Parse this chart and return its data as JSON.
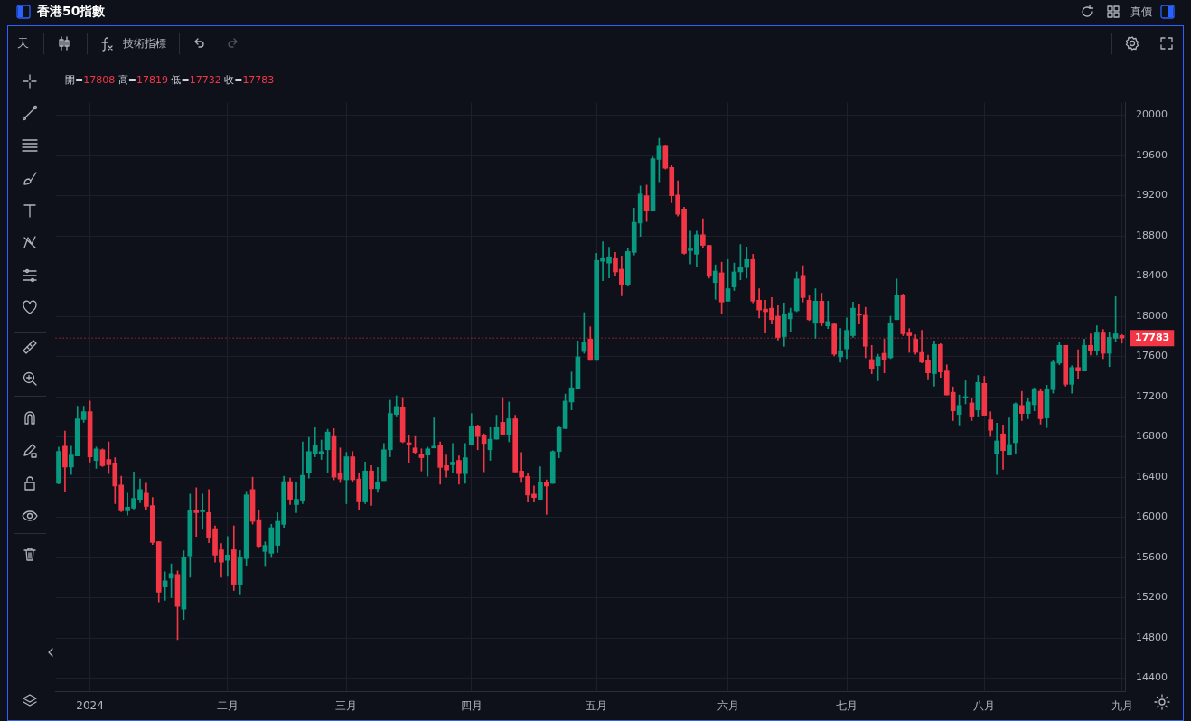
{
  "chart_data": {
    "type": "candlestick",
    "title": "香港50指數",
    "annotations": [
      "開=17808 高=17819 低=17732 收=17783",
      "天",
      "技術指標",
      "真價"
    ],
    "categories": [
      null,
      null,
      null,
      null,
      null,
      "2024",
      null,
      null,
      null,
      null,
      null,
      null,
      null,
      null,
      null,
      null,
      null,
      null,
      null,
      null,
      null,
      null,
      null,
      null,
      null,
      null,
      null,
      "二月",
      null,
      null,
      null,
      null,
      null,
      null,
      null,
      null,
      null,
      null,
      null,
      null,
      null,
      null,
      null,
      null,
      null,
      null,
      "三月",
      null,
      null,
      null,
      null,
      null,
      null,
      null,
      null,
      null,
      null,
      null,
      null,
      null,
      null,
      null,
      null,
      null,
      null,
      null,
      "四月",
      null,
      null,
      null,
      null,
      null,
      null,
      null,
      null,
      null,
      null,
      null,
      null,
      null,
      null,
      null,
      null,
      null,
      null,
      null,
      "五月",
      null,
      null,
      null,
      null,
      null,
      null,
      null,
      null,
      null,
      null,
      null,
      null,
      null,
      null,
      null,
      null,
      null,
      null,
      null,
      null,
      "六月",
      null,
      null,
      null,
      null,
      null,
      null,
      null,
      null,
      null,
      null,
      null,
      null,
      null,
      null,
      null,
      null,
      null,
      null,
      "七月",
      null,
      null,
      null,
      null,
      null,
      null,
      null,
      null,
      null,
      null,
      null,
      null,
      null,
      null,
      null,
      null,
      null,
      null,
      null,
      null,
      null,
      "八月",
      null,
      null,
      null,
      null,
      null,
      null,
      null,
      null,
      null,
      null,
      null,
      null,
      null,
      null,
      null,
      null,
      null,
      null,
      null,
      null,
      null,
      "九月"
    ],
    "ohlc": [
      [
        16338,
        16699,
        16332,
        16655
      ],
      [
        16707,
        16857,
        16258,
        16499
      ],
      [
        16499,
        16707,
        16426,
        16619
      ],
      [
        16610,
        17104,
        16610,
        16980
      ],
      [
        16971,
        17104,
        16945,
        17051
      ],
      [
        17051,
        17156,
        16549,
        16602
      ],
      [
        16566,
        16699,
        16487,
        16681
      ],
      [
        16672,
        16681,
        16505,
        16514
      ],
      [
        16575,
        16751,
        16434,
        16522
      ],
      [
        16531,
        16593,
        16135,
        16311
      ],
      [
        16320,
        16408,
        16056,
        16065
      ],
      [
        16065,
        16241,
        16021,
        16100
      ],
      [
        16091,
        16452,
        16082,
        16188
      ],
      [
        16179,
        16382,
        16144,
        16276
      ],
      [
        16241,
        16338,
        16073,
        16109
      ],
      [
        16117,
        16197,
        15730,
        15750
      ],
      [
        15756,
        15756,
        15158,
        15254
      ],
      [
        15307,
        15457,
        15175,
        15369
      ],
      [
        15395,
        15536,
        15202,
        15439
      ],
      [
        15431,
        15466,
        14782,
        15114
      ],
      [
        15087,
        15668,
        14982,
        15607
      ],
      [
        15616,
        16232,
        15404,
        16073
      ],
      [
        16073,
        16293,
        15809,
        16047
      ],
      [
        16056,
        16232,
        15880,
        16073
      ],
      [
        16047,
        16276,
        15748,
        15792
      ],
      [
        15888,
        15915,
        15554,
        15624
      ],
      [
        15677,
        15739,
        15404,
        15554
      ],
      [
        15572,
        15809,
        15413,
        15624
      ],
      [
        15677,
        15915,
        15272,
        15334
      ],
      [
        15334,
        15668,
        15237,
        15598
      ],
      [
        15589,
        16258,
        15519,
        16223
      ],
      [
        16276,
        16399,
        15932,
        15959
      ],
      [
        15977,
        16073,
        15704,
        15712
      ],
      [
        15660,
        15756,
        15510,
        15721
      ],
      [
        15642,
        15930,
        15600,
        15897
      ],
      [
        15721,
        16044,
        15650,
        15960
      ],
      [
        15930,
        16408,
        15900,
        16355
      ],
      [
        16355,
        16390,
        16126,
        16179
      ],
      [
        16126,
        16346,
        16047,
        16179
      ],
      [
        16170,
        16751,
        16135,
        16417
      ],
      [
        16443,
        16795,
        16390,
        16654
      ],
      [
        16628,
        16892,
        16602,
        16716
      ],
      [
        16628,
        16769,
        16575,
        16654
      ],
      [
        16672,
        16875,
        16443,
        16848
      ],
      [
        16804,
        16883,
        16373,
        16399
      ],
      [
        16443,
        16690,
        16346,
        16381
      ],
      [
        16373,
        16646,
        16135,
        16602
      ],
      [
        16602,
        16654,
        16355,
        16373
      ],
      [
        16381,
        16443,
        16073,
        16153
      ],
      [
        16153,
        16549,
        16135,
        16461
      ],
      [
        16461,
        16514,
        16117,
        16285
      ],
      [
        16285,
        16496,
        16249,
        16346
      ],
      [
        16364,
        16734,
        16364,
        16672
      ],
      [
        16672,
        17165,
        16602,
        17033
      ],
      [
        17024,
        17209,
        17007,
        17103
      ],
      [
        17095,
        17192,
        16742,
        16751
      ],
      [
        16742,
        16813,
        16540,
        16725
      ],
      [
        16690,
        16804,
        16628,
        16646
      ],
      [
        16628,
        16681,
        16461,
        16593
      ],
      [
        16619,
        16698,
        16408,
        16681
      ],
      [
        16690,
        16989,
        16690,
        16707
      ],
      [
        16716,
        16751,
        16329,
        16496
      ],
      [
        16514,
        16619,
        16399,
        16470
      ],
      [
        16522,
        16734,
        16443,
        16549
      ],
      [
        16566,
        16610,
        16329,
        16434
      ],
      [
        16434,
        16734,
        16338,
        16593
      ],
      [
        16725,
        17033,
        16725,
        16910
      ],
      [
        16910,
        16919,
        16672,
        16804
      ],
      [
        16813,
        16831,
        16452,
        16734
      ],
      [
        16672,
        16892,
        16566,
        16777
      ],
      [
        16777,
        17015,
        16777,
        16892
      ],
      [
        16945,
        17191,
        16821,
        16821
      ],
      [
        16821,
        17147,
        16751,
        16980
      ],
      [
        16980,
        17015,
        16451,
        16451
      ],
      [
        16460,
        16645,
        16346,
        16399
      ],
      [
        16407,
        16443,
        16152,
        16222
      ],
      [
        16231,
        16311,
        16152,
        16196
      ],
      [
        16179,
        16504,
        16179,
        16346
      ],
      [
        16346,
        16372,
        16029,
        16311
      ],
      [
        16337,
        16663,
        16337,
        16654
      ],
      [
        16654,
        16901,
        16592,
        16892
      ],
      [
        16883,
        17226,
        16883,
        17156
      ],
      [
        17147,
        17446,
        17068,
        17288
      ],
      [
        17279,
        17755,
        17279,
        17596
      ],
      [
        17649,
        18036,
        17631,
        17737
      ],
      [
        17772,
        17895,
        17561,
        17561
      ],
      [
        17561,
        18626,
        17561,
        18556
      ],
      [
        18547,
        18741,
        18353,
        18573
      ],
      [
        18529,
        18688,
        18380,
        18591
      ],
      [
        18573,
        18635,
        18406,
        18441
      ],
      [
        18468,
        18600,
        18204,
        18318
      ],
      [
        18318,
        18679,
        18300,
        18644
      ],
      [
        18635,
        19075,
        18609,
        18934
      ],
      [
        18926,
        19295,
        18794,
        19216
      ],
      [
        19199,
        19304,
        18943,
        19049
      ],
      [
        19049,
        19586,
        19049,
        19568
      ],
      [
        19560,
        19771,
        19339,
        19692
      ],
      [
        19692,
        19701,
        19463,
        19472
      ],
      [
        19480,
        19498,
        19128,
        19199
      ],
      [
        19207,
        19348,
        18996,
        19014
      ],
      [
        19067,
        19084,
        18617,
        18626
      ],
      [
        18653,
        18846,
        18521,
        18670
      ],
      [
        18617,
        18846,
        18494,
        18811
      ],
      [
        18811,
        18970,
        18679,
        18705
      ],
      [
        18705,
        18705,
        18379,
        18397
      ],
      [
        18335,
        18511,
        18168,
        18450
      ],
      [
        18432,
        18538,
        18027,
        18142
      ],
      [
        18150,
        18564,
        18150,
        18274
      ],
      [
        18291,
        18529,
        18256,
        18441
      ],
      [
        18441,
        18714,
        18362,
        18485
      ],
      [
        18485,
        18688,
        18379,
        18564
      ],
      [
        18564,
        18617,
        18133,
        18150
      ],
      [
        18159,
        18274,
        17983,
        18062
      ],
      [
        18071,
        18159,
        17833,
        18045
      ],
      [
        18080,
        18186,
        17922,
        17966
      ],
      [
        18001,
        18106,
        17763,
        17789
      ],
      [
        17798,
        18133,
        17701,
        18018
      ],
      [
        17974,
        18080,
        17842,
        18036
      ],
      [
        18054,
        18441,
        18045,
        18371
      ],
      [
        18406,
        18503,
        18142,
        18186
      ],
      [
        18159,
        18203,
        17957,
        17966
      ],
      [
        17930,
        18274,
        17781,
        18150
      ],
      [
        18150,
        18230,
        17904,
        17930
      ],
      [
        17904,
        18150,
        17877,
        17948
      ],
      [
        17922,
        17930,
        17605,
        17622
      ],
      [
        17596,
        17877,
        17543,
        17657
      ],
      [
        17675,
        17983,
        17578,
        17860
      ],
      [
        17807,
        18142,
        17789,
        18080
      ],
      [
        18018,
        18115,
        17922,
        18010
      ],
      [
        18010,
        18089,
        17587,
        17701
      ],
      [
        17569,
        17710,
        17428,
        17481
      ],
      [
        17508,
        17622,
        17358,
        17596
      ],
      [
        17631,
        17772,
        17437,
        17569
      ],
      [
        17587,
        18001,
        17578,
        17930
      ],
      [
        17966,
        18371,
        17966,
        18212
      ],
      [
        18212,
        18221,
        17807,
        17825
      ],
      [
        17833,
        17877,
        17640,
        17807
      ],
      [
        17772,
        17816,
        17622,
        17640
      ],
      [
        17640,
        17860,
        17535,
        17543
      ],
      [
        17561,
        17614,
        17367,
        17437
      ],
      [
        17429,
        17754,
        17305,
        17719
      ],
      [
        17719,
        17728,
        17393,
        17446
      ],
      [
        17455,
        17517,
        17217,
        17217
      ],
      [
        17244,
        17297,
        16962,
        17059
      ],
      [
        17024,
        17217,
        16918,
        17112
      ],
      [
        17191,
        17358,
        17129,
        17200
      ],
      [
        17138,
        17182,
        16962,
        17006
      ],
      [
        17068,
        17411,
        16997,
        17341
      ],
      [
        17332,
        17402,
        17015,
        17015
      ],
      [
        16971,
        17050,
        16804,
        16865
      ],
      [
        16636,
        16936,
        16425,
        16760
      ],
      [
        16830,
        16918,
        16478,
        16663
      ],
      [
        16619,
        16988,
        16619,
        16724
      ],
      [
        16742,
        17138,
        16636,
        17129
      ],
      [
        17112,
        17253,
        16962,
        17033
      ],
      [
        17033,
        17182,
        16980,
        17147
      ],
      [
        17120,
        17288,
        17059,
        17279
      ],
      [
        17253,
        17279,
        16927,
        16980
      ],
      [
        16988,
        17314,
        16892,
        17279
      ],
      [
        17270,
        17561,
        17235,
        17543
      ],
      [
        17534,
        17737,
        17517,
        17710
      ],
      [
        17710,
        17710,
        17305,
        17323
      ],
      [
        17323,
        17508,
        17235,
        17490
      ],
      [
        17490,
        17666,
        17376,
        17455
      ],
      [
        17455,
        17772,
        17455,
        17710
      ],
      [
        17710,
        17825,
        17614,
        17658
      ],
      [
        17658,
        17904,
        17614,
        17834
      ],
      [
        17834,
        17869,
        17578,
        17631
      ],
      [
        17631,
        17843,
        17499,
        17790
      ],
      [
        17781,
        18195,
        17746,
        17825
      ],
      [
        17808,
        17819,
        17732,
        17783
      ]
    ],
    "colors": [
      "#089981",
      "#f23645",
      "#089981",
      "#089981",
      "#089981",
      "#f23645",
      "#089981",
      "#f23645",
      "#f23645",
      "#f23645",
      "#f23645",
      "#089981",
      "#089981",
      "#089981",
      "#f23645",
      "#f23645",
      "#f23645",
      "#089981",
      "#089981",
      "#f23645",
      "#089981",
      "#089981",
      "#f23645",
      "#089981",
      "#f23645",
      "#f23645",
      "#f23645",
      "#089981",
      "#f23645",
      "#089981",
      "#089981",
      "#f23645",
      "#f23645",
      "#089981",
      "#089981",
      "#089981",
      "#089981",
      "#f23645",
      "#089981",
      "#089981",
      "#089981",
      "#089981",
      "#089981",
      "#089981",
      "#f23645",
      "#f23645",
      "#089981",
      "#f23645",
      "#f23645",
      "#089981",
      "#f23645",
      "#089981",
      "#089981",
      "#089981",
      "#089981",
      "#f23645",
      "#f23645",
      "#f23645",
      "#f23645",
      "#089981",
      "#089981",
      "#f23645",
      "#f23645",
      "#089981",
      "#f23645",
      "#089981",
      "#089981",
      "#f23645",
      "#f23645",
      "#089981",
      "#089981",
      "#f23645",
      "#089981",
      "#f23645",
      "#f23645",
      "#f23645",
      "#f23645",
      "#089981",
      "#f23645",
      "#089981",
      "#089981",
      "#089981",
      "#089981",
      "#089981",
      "#089981",
      "#f23645",
      "#089981",
      "#089981",
      "#089981",
      "#f23645",
      "#f23645",
      "#089981",
      "#089981",
      "#089981",
      "#f23645",
      "#089981",
      "#089981",
      "#f23645",
      "#f23645",
      "#f23645",
      "#f23645",
      "#089981",
      "#089981",
      "#f23645",
      "#f23645",
      "#089981",
      "#f23645",
      "#089981",
      "#089981",
      "#089981",
      "#089981",
      "#f23645",
      "#f23645",
      "#f23645",
      "#f23645",
      "#f23645",
      "#089981",
      "#089981",
      "#089981",
      "#f23645",
      "#f23645",
      "#089981",
      "#f23645",
      "#089981",
      "#f23645",
      "#089981",
      "#089981",
      "#089981",
      "#f23645",
      "#f23645",
      "#f23645",
      "#089981",
      "#f23645",
      "#089981",
      "#089981",
      "#f23645",
      "#f23645",
      "#f23645",
      "#f23645",
      "#f23645",
      "#089981",
      "#f23645",
      "#f23645",
      "#f23645",
      "#089981",
      "#089981",
      "#f23645",
      "#089981",
      "#f23645",
      "#f23645",
      "#089981",
      "#f23645",
      "#089981",
      "#089981",
      "#f23645",
      "#089981",
      "#089981",
      "#f23645",
      "#089981",
      "#089981",
      "#089981",
      "#f23645",
      "#089981",
      "#f23645",
      "#089981",
      "#f23645",
      "#089981",
      "#f23645",
      "#089981",
      "#089981",
      "#f23645"
    ],
    "ylim": [
      14270,
      20125
    ],
    "yticks": [
      14400,
      14800,
      15200,
      15600,
      16000,
      16400,
      16800,
      17200,
      17600,
      18000,
      18400,
      18800,
      19200,
      19600,
      20000
    ],
    "grid": true,
    "ref_lines": [
      {
        "axis": "y",
        "value": 17783,
        "label": "17783",
        "color": "#f23645",
        "line_style": "dotted"
      }
    ]
  }
}
